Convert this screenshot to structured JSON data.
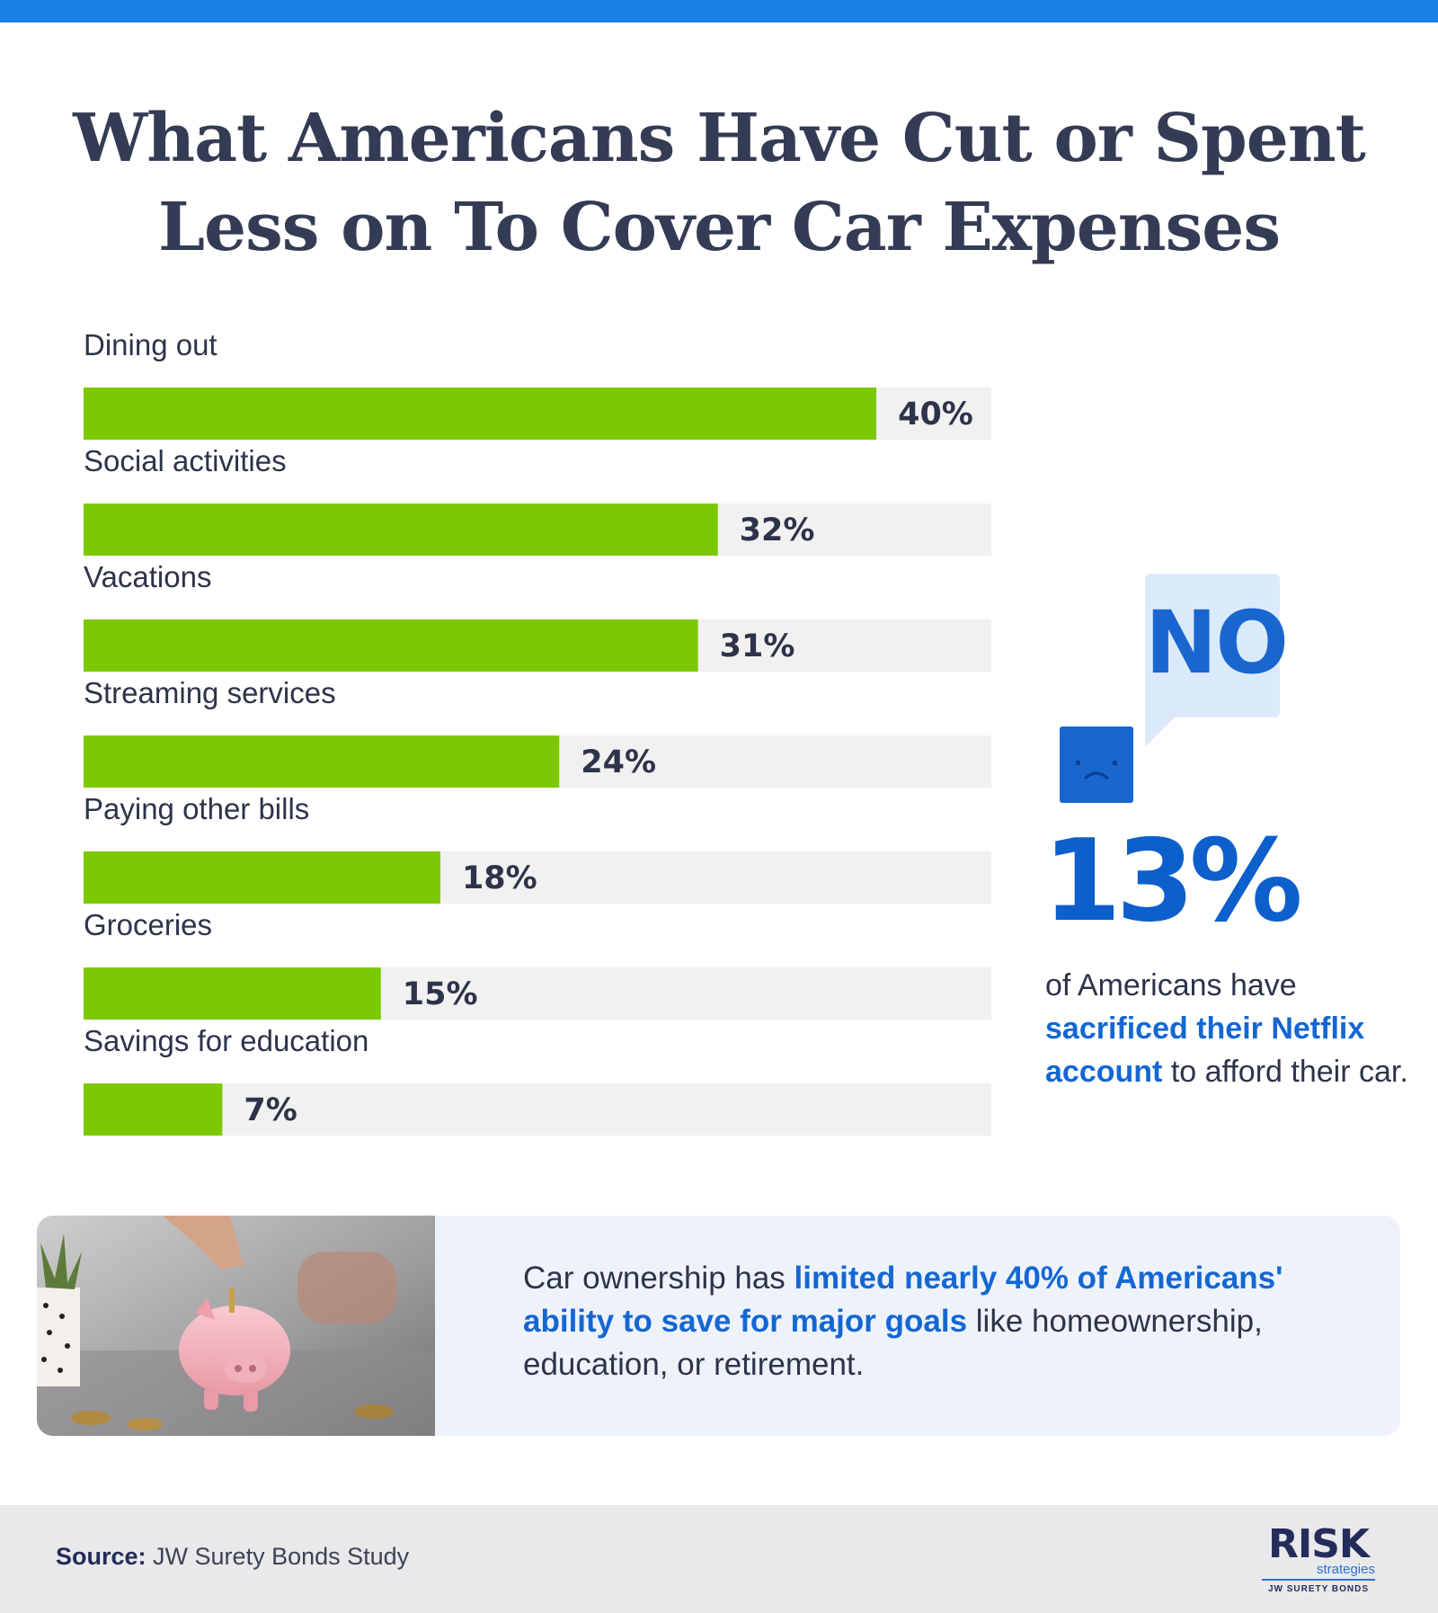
{
  "header": {
    "title_line1": "What Americans Have Cut or Spent",
    "title_line2": "Less on To Cover Car Expenses"
  },
  "colors": {
    "accent_bar": "#7ac903",
    "track": "#f1f1f1",
    "text_dark": "#2d3349",
    "brand_blue": "#1467d3",
    "top_stripe": "#1a80e6"
  },
  "chart_data": {
    "type": "bar",
    "orientation": "horizontal",
    "categories": [
      "Dining out",
      "Social activities",
      "Vacations",
      "Streaming services",
      "Paying other bills",
      "Groceries",
      "Savings for education"
    ],
    "values": [
      40,
      32,
      31,
      24,
      18,
      15,
      7
    ],
    "value_labels": [
      "40%",
      "32%",
      "31%",
      "24%",
      "18%",
      "15%",
      "7%"
    ],
    "xlim": [
      0,
      45.8
    ],
    "grid": false,
    "title": "",
    "xlabel": "",
    "ylabel": ""
  },
  "callout": {
    "bubble_text": "NO",
    "icon": "sad-face-icon",
    "stat": "13%",
    "text_before": "of Americans have",
    "highlight": "sacrificed their Netflix account",
    "text_after": "to afford their car."
  },
  "panel": {
    "image": "piggy-bank-photo",
    "text_before": "Car ownership has",
    "highlight": "limited nearly 40% of Americans' ability to save for major goals",
    "text_after": "like homeownership, education, or retirement."
  },
  "footer": {
    "source_label": "Source:",
    "source_text": "JW Surety Bonds Study",
    "logo_word": "RISK",
    "logo_sub": "strategies",
    "logo_tag": "JW SURETY BONDS"
  }
}
